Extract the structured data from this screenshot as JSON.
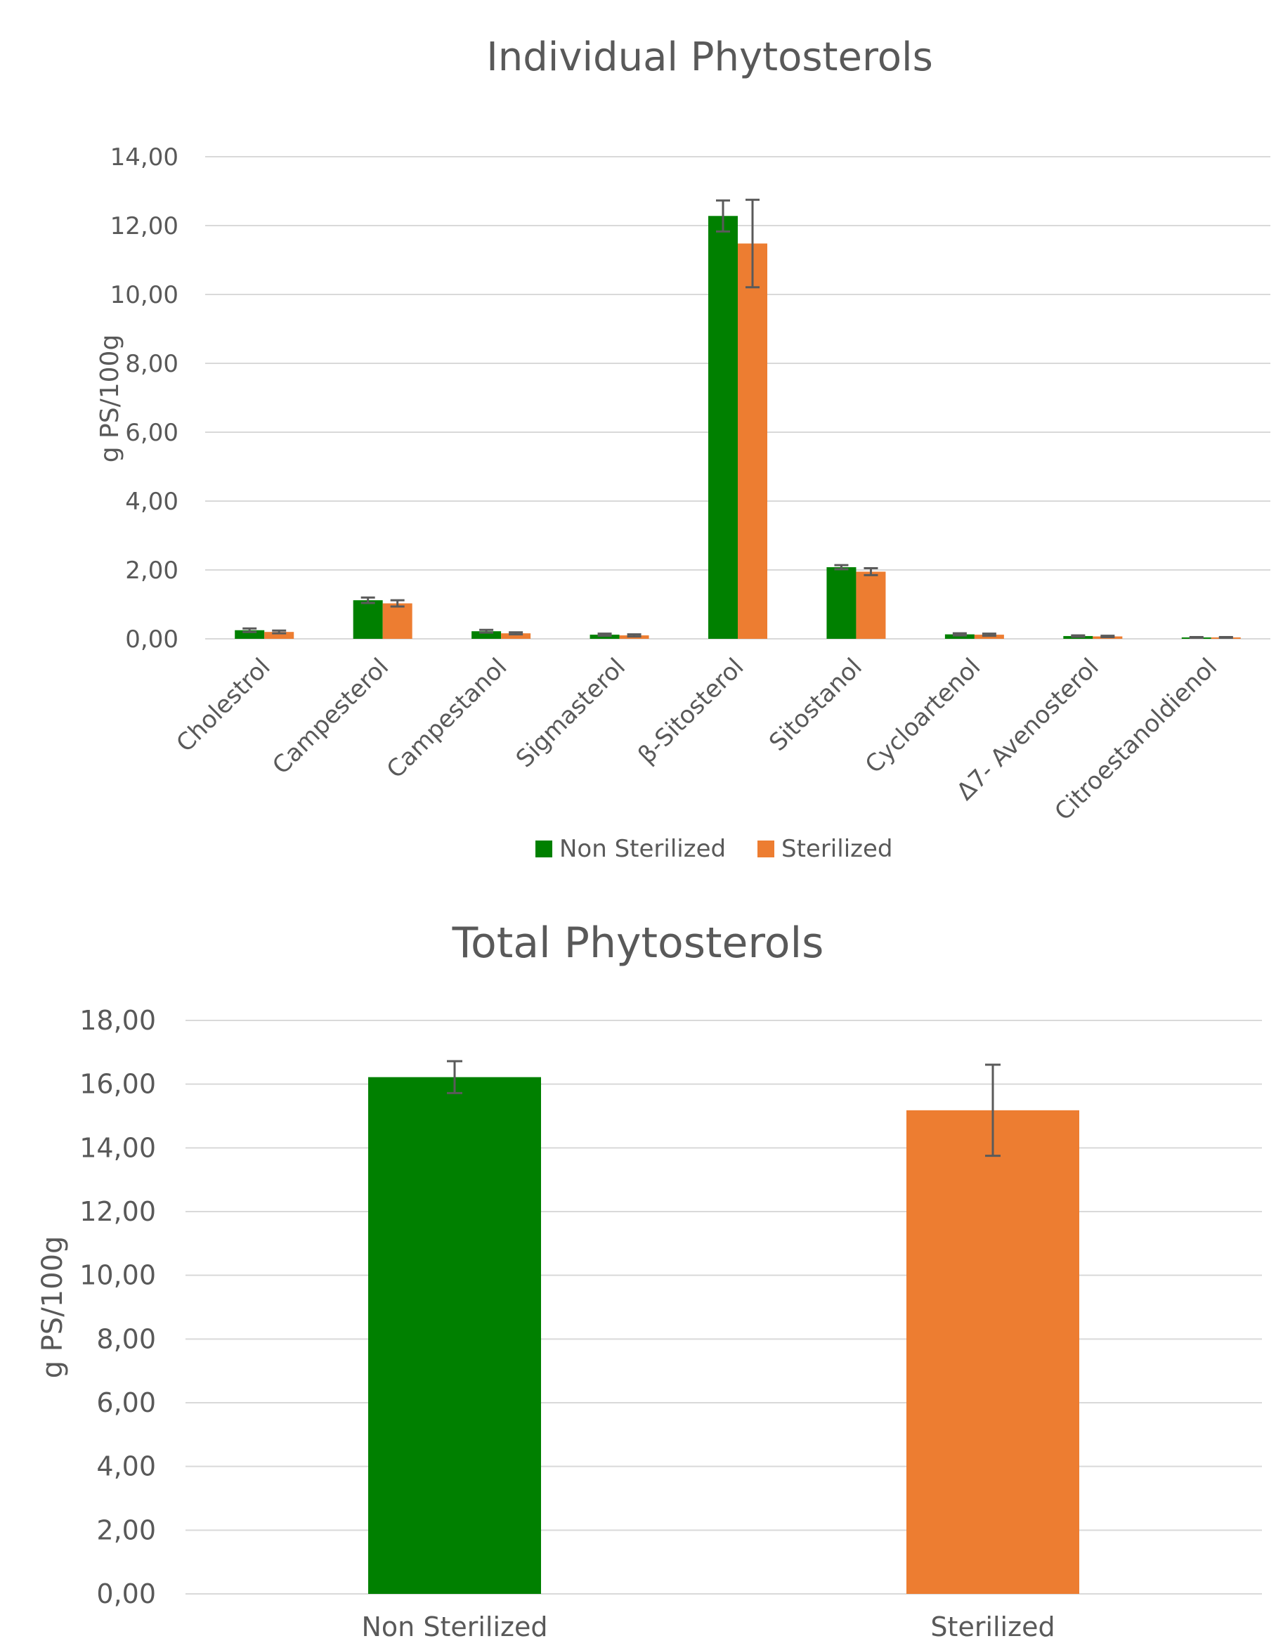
{
  "chart_data": [
    {
      "type": "bar",
      "title": "Individual Phytosterols",
      "xlabel": "",
      "ylabel": "g PS/100g",
      "ylim": [
        0,
        14
      ],
      "yticks": [
        0,
        2,
        4,
        6,
        8,
        10,
        12,
        14
      ],
      "ytick_labels": [
        "0,00",
        "2,00",
        "4,00",
        "6,00",
        "8,00",
        "10,00",
        "12,00",
        "14,00"
      ],
      "categories": [
        "Cholestrol",
        "Campesterol",
        "Campestanol",
        "Sigmasterol",
        "β-Sitosterol",
        "Sitostanol",
        "Cycloartenol",
        "Δ7- Avenosterol",
        "Citroestanoldienol"
      ],
      "series": [
        {
          "name": "Non Sterilized",
          "color": "#008000",
          "values": [
            0.25,
            1.12,
            0.22,
            0.12,
            12.28,
            2.08,
            0.13,
            0.08,
            0.04
          ],
          "errors": [
            0.05,
            0.08,
            0.04,
            0.03,
            0.45,
            0.06,
            0.03,
            0.02,
            0.01
          ]
        },
        {
          "name": "Sterilized",
          "color": "#ED7D31",
          "values": [
            0.2,
            1.03,
            0.16,
            0.1,
            11.48,
            1.95,
            0.12,
            0.07,
            0.04
          ],
          "errors": [
            0.04,
            0.09,
            0.03,
            0.03,
            1.27,
            0.1,
            0.03,
            0.02,
            0.01
          ]
        }
      ],
      "legend": "bottom",
      "grid": true
    },
    {
      "type": "bar",
      "title": "Total Phytosterols",
      "xlabel": "",
      "ylabel": "g PS/100g",
      "ylim": [
        0,
        18
      ],
      "yticks": [
        0,
        2,
        4,
        6,
        8,
        10,
        12,
        14,
        16,
        18
      ],
      "ytick_labels": [
        "0,00",
        "2,00",
        "4,00",
        "6,00",
        "8,00",
        "10,00",
        "12,00",
        "14,00",
        "16,00",
        "18,00"
      ],
      "categories": [
        "Non Sterilized",
        "Sterilized"
      ],
      "values": [
        16.22,
        15.18
      ],
      "errors": [
        0.5,
        1.43
      ],
      "colors": [
        "#008000",
        "#ED7D31"
      ],
      "grid": true
    }
  ]
}
